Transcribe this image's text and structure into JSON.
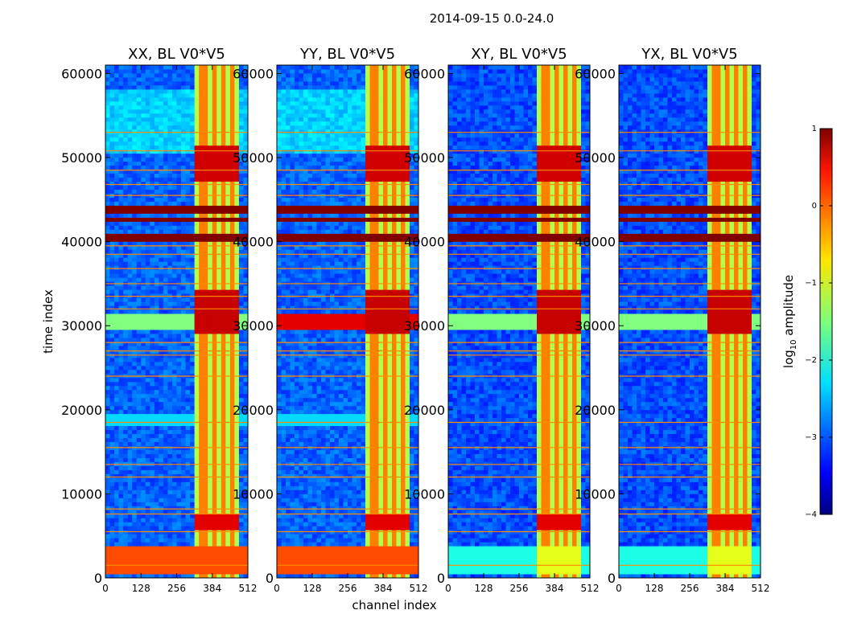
{
  "chart_data": {
    "type": "heatmap",
    "suptitle": "2014-09-15 0.0-24.0",
    "xlabel": "channel index",
    "ylabel": "time index",
    "xlim": [
      0,
      512
    ],
    "ylim": [
      0,
      61000
    ],
    "x_ticks": [
      0,
      128,
      256,
      384,
      512
    ],
    "y_ticks": [
      0,
      10000,
      20000,
      30000,
      40000,
      50000,
      60000
    ],
    "panels": [
      {
        "title": "XX, BL V0*V5",
        "pol": "XX"
      },
      {
        "title": "YY, BL V0*V5",
        "pol": "YY"
      },
      {
        "title": "XY, BL V0*V5",
        "pol": "XY"
      },
      {
        "title": "YX, BL V0*V5",
        "pol": "YX"
      }
    ],
    "colorbar": {
      "label": "log10 amplitude",
      "label_base": "log",
      "label_sub": "10",
      "label_rest": " amplitude",
      "range": [
        -4,
        1
      ],
      "ticks": [
        "−4",
        "−3",
        "−2",
        "−1",
        "0",
        "1"
      ],
      "colormap": "jet"
    },
    "features": {
      "rfi_channel_band": [
        325,
        480
      ],
      "saturated_time_bands": [
        [
          40200,
          41000
        ],
        [
          42500,
          43000
        ],
        [
          43600,
          44200
        ]
      ],
      "bright_time_band": [
        29500,
        31500
      ],
      "low_time_band": [
        500,
        4000
      ],
      "flag_rows": [
        1500,
        5500,
        7600,
        8200,
        12000,
        13500,
        15500,
        18500,
        24000,
        26500,
        27000,
        28000,
        32000,
        33500,
        35000,
        36800,
        38500,
        39500,
        45500,
        46800,
        48500,
        50800,
        53000
      ]
    }
  }
}
